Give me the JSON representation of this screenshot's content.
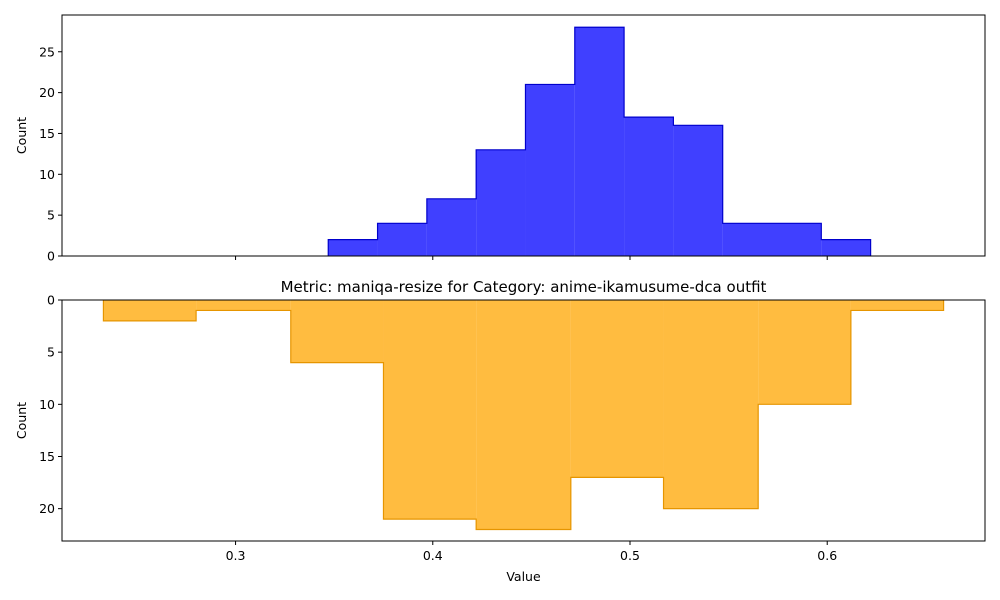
{
  "chart_data": [
    {
      "type": "histogram-step",
      "title": "",
      "xlabel": "",
      "ylabel": "Count",
      "ylim": [
        0,
        29.5
      ],
      "inverted_y": false,
      "yticks": [
        0,
        5,
        10,
        15,
        20,
        25
      ],
      "grid": false,
      "series": [
        {
          "fill": "#0000ff",
          "edge": "#0000cc",
          "bins": [
            {
              "x0": 0.347,
              "x1": 0.372,
              "y": 2
            },
            {
              "x0": 0.372,
              "x1": 0.397,
              "y": 4
            },
            {
              "x0": 0.397,
              "x1": 0.422,
              "y": 7
            },
            {
              "x0": 0.422,
              "x1": 0.447,
              "y": 13
            },
            {
              "x0": 0.447,
              "x1": 0.472,
              "y": 21
            },
            {
              "x0": 0.472,
              "x1": 0.497,
              "y": 28
            },
            {
              "x0": 0.497,
              "x1": 0.522,
              "y": 17
            },
            {
              "x0": 0.522,
              "x1": 0.547,
              "y": 16
            },
            {
              "x0": 0.547,
              "x1": 0.572,
              "y": 4
            },
            {
              "x0": 0.572,
              "x1": 0.597,
              "y": 4
            },
            {
              "x0": 0.597,
              "x1": 0.622,
              "y": 2
            }
          ]
        }
      ]
    },
    {
      "type": "histogram-step",
      "title": "Metric: maniqa-resize for Category: anime-ikamusume-dca outfit",
      "xlabel": "Value",
      "ylabel": "Count",
      "ylim": [
        0,
        23.1
      ],
      "inverted_y": true,
      "yticks": [
        0,
        5,
        10,
        15,
        20
      ],
      "grid": false,
      "series": [
        {
          "fill": "#ffa500",
          "edge": "#e69500",
          "bins": [
            {
              "x0": 0.233,
              "x1": 0.28,
              "y": 2
            },
            {
              "x0": 0.28,
              "x1": 0.328,
              "y": 1
            },
            {
              "x0": 0.328,
              "x1": 0.375,
              "y": 6
            },
            {
              "x0": 0.375,
              "x1": 0.422,
              "y": 21
            },
            {
              "x0": 0.422,
              "x1": 0.47,
              "y": 22
            },
            {
              "x0": 0.47,
              "x1": 0.517,
              "y": 17
            },
            {
              "x0": 0.517,
              "x1": 0.565,
              "y": 20
            },
            {
              "x0": 0.565,
              "x1": 0.612,
              "y": 10
            },
            {
              "x0": 0.612,
              "x1": 0.659,
              "y": 1
            }
          ]
        }
      ]
    }
  ],
  "shared_x": {
    "xlim": [
      0.212,
      0.68
    ],
    "xticks": [
      0.3,
      0.4,
      0.5,
      0.6
    ],
    "xtick_labels": [
      "0.3",
      "0.4",
      "0.5",
      "0.6"
    ]
  }
}
